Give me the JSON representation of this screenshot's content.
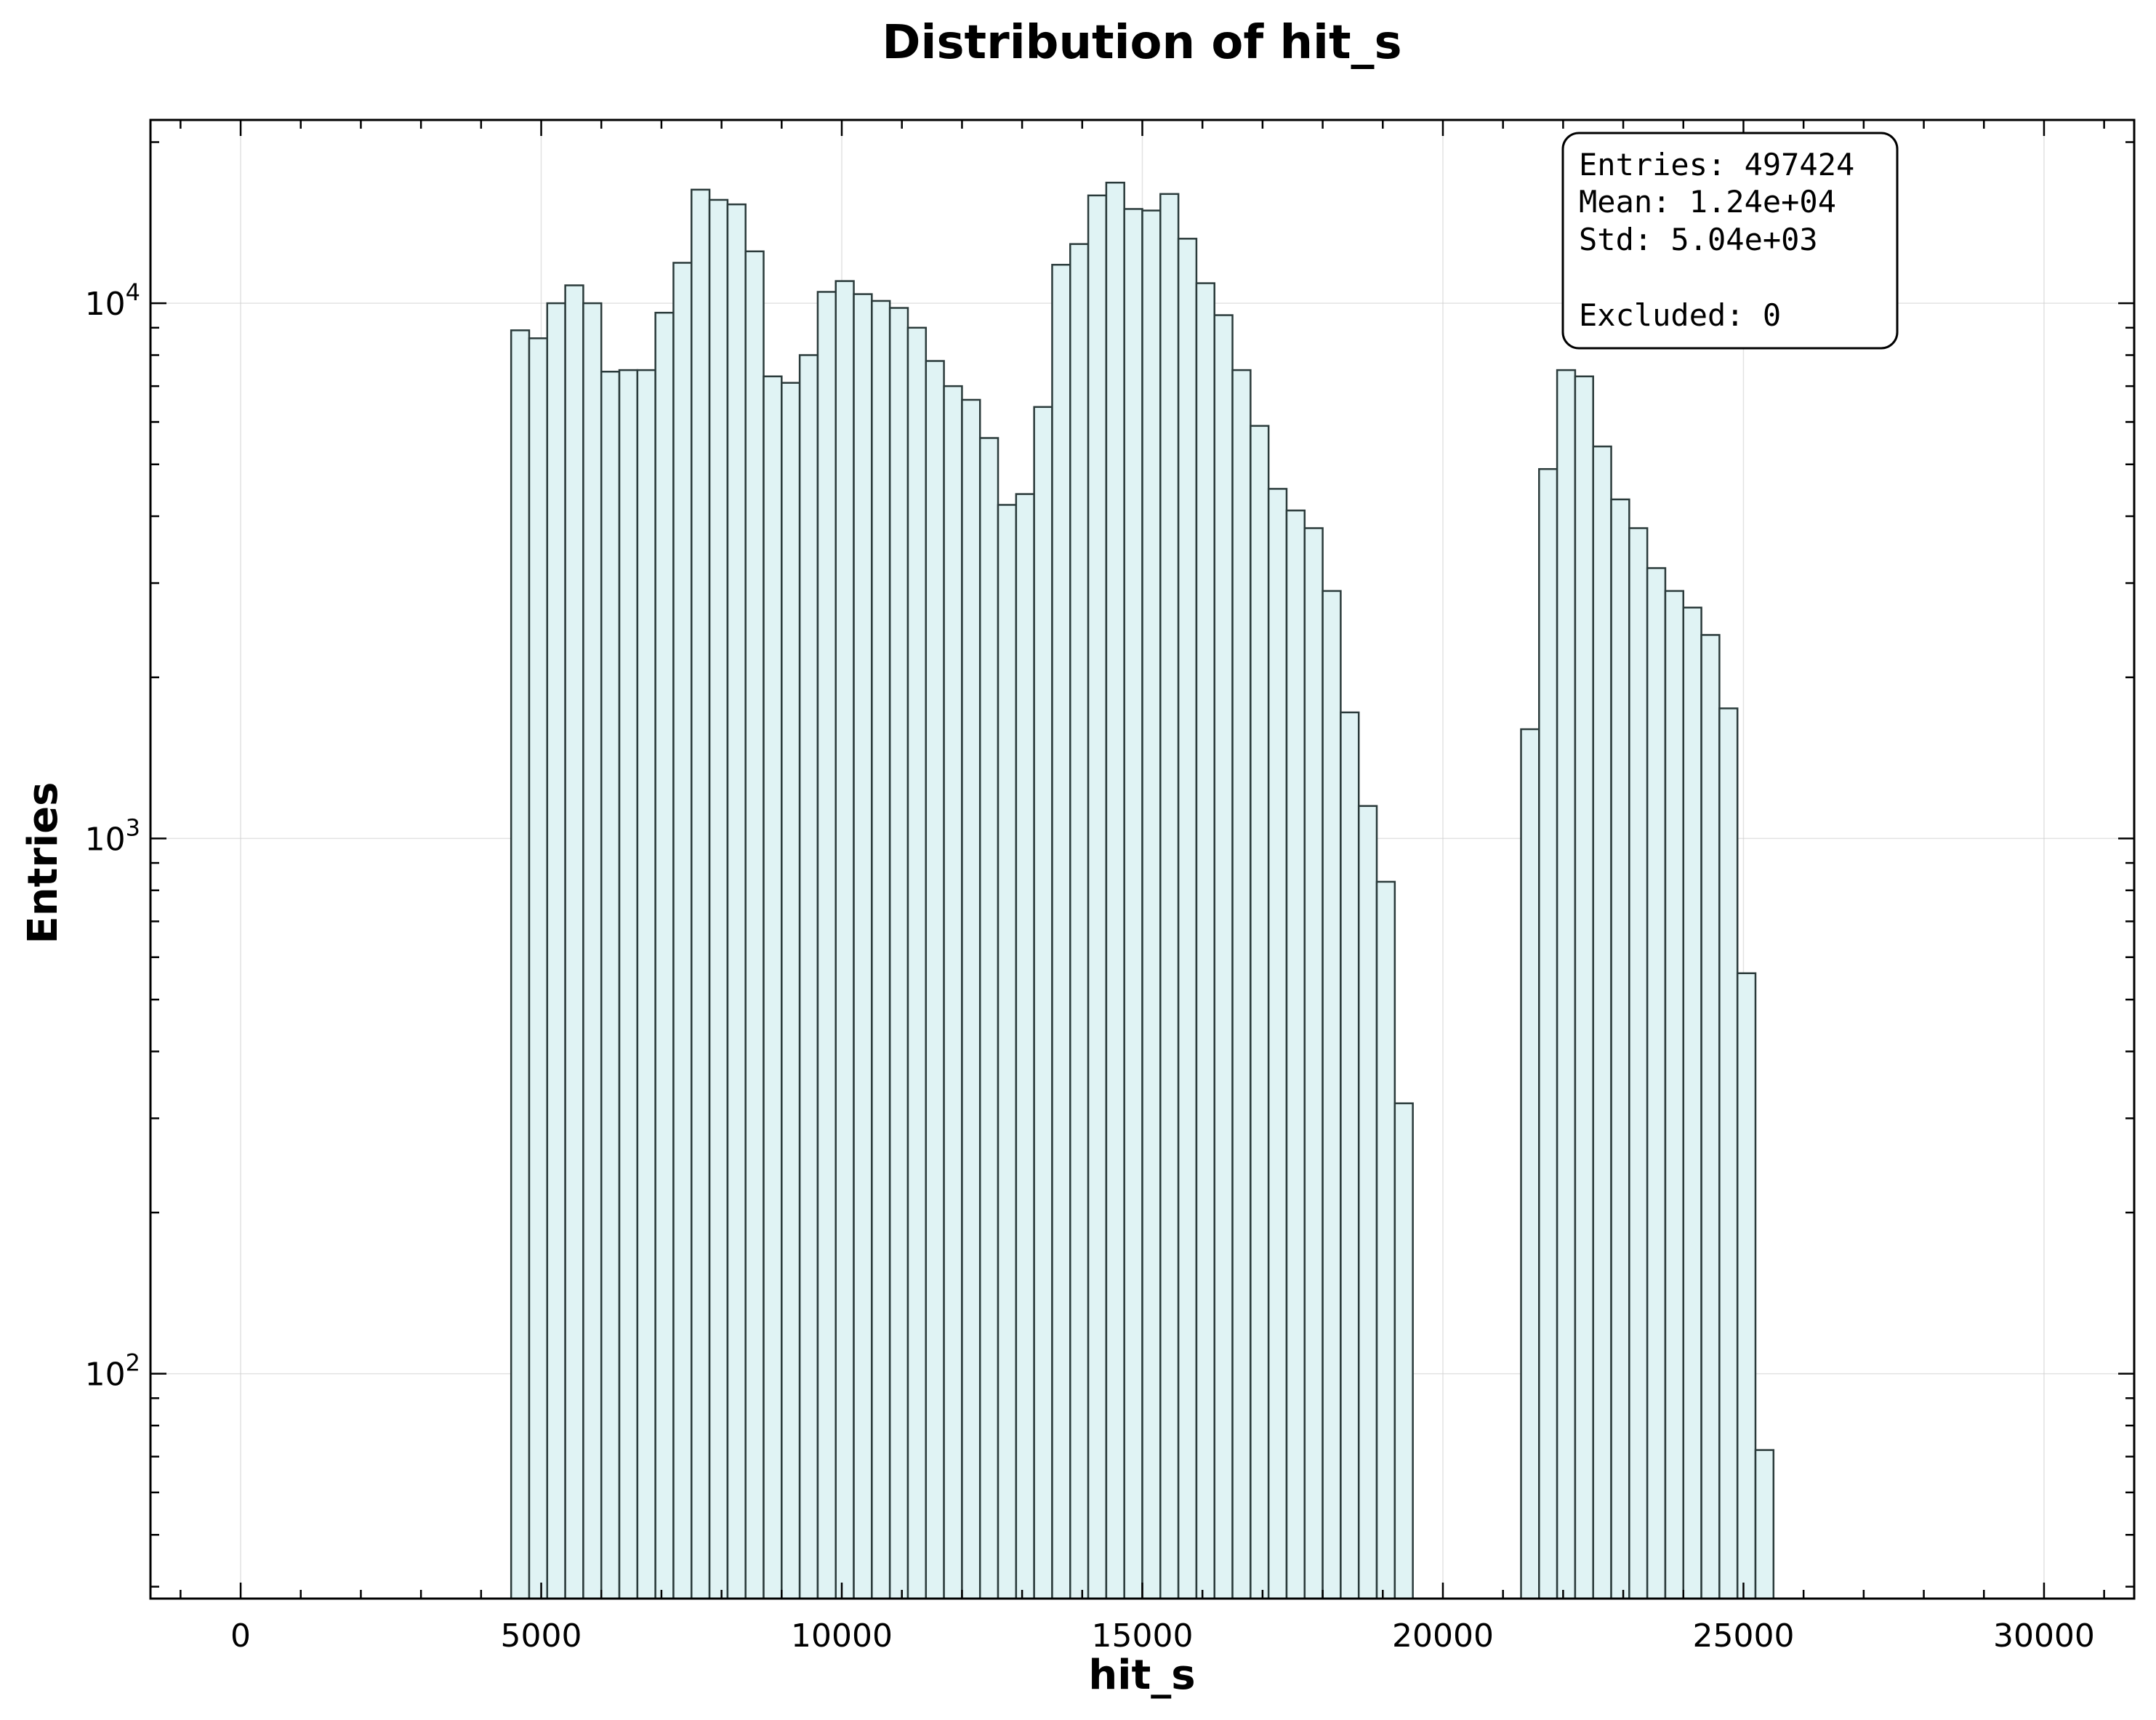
{
  "chart_data": {
    "type": "bar",
    "title": "Distribution of hit_s",
    "xlabel": "hit_s",
    "ylabel": "Entries",
    "xlim": [
      -1500,
      31500
    ],
    "ylim": [
      38,
      22000
    ],
    "yscale": "log",
    "x_ticks": [
      0,
      5000,
      10000,
      15000,
      20000,
      25000,
      30000
    ],
    "x_tick_labels": [
      "0",
      "5000",
      "10000",
      "15000",
      "20000",
      "25000",
      "30000"
    ],
    "y_ticks": [
      100,
      1000,
      10000
    ],
    "y_tick_labels": [
      {
        "base": "10",
        "exp": "2"
      },
      {
        "base": "10",
        "exp": "3"
      },
      {
        "base": "10",
        "exp": "4"
      }
    ],
    "grid": true,
    "bin_width": 300,
    "bin_edges_start": 4500,
    "bin_counts": [
      8900,
      8600,
      10000,
      10800,
      10000,
      7450,
      7500,
      7500,
      9600,
      11900,
      16300,
      15600,
      15300,
      12500,
      7300,
      7100,
      8000,
      10500,
      11000,
      10400,
      10100,
      9800,
      9000,
      7800,
      7000,
      6600,
      5600,
      4200,
      4400,
      6400,
      11800,
      12900,
      15900,
      16800,
      15000,
      14900,
      16000,
      13200,
      10900,
      9500,
      7500,
      5900,
      4500,
      4100,
      3800,
      2900,
      1720,
      1150,
      830,
      320,
      0,
      0,
      0,
      0,
      0,
      0,
      1600,
      4900,
      7500,
      7300,
      5400,
      4300,
      3800,
      3200,
      2900,
      2700,
      2400,
      1750,
      560,
      72
    ],
    "stats_box": {
      "entries": "Entries: 497424",
      "mean": "Mean: 1.24e+04",
      "std": "Std: 5.04e+03",
      "excluded": "Excluded: 0",
      "position": "top-right"
    },
    "colors": {
      "bar_fill": "#e0f3f4",
      "bar_edge": "#2a3a3a"
    }
  }
}
